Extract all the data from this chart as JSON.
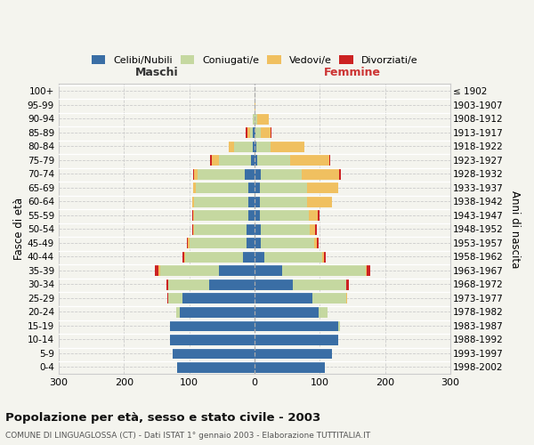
{
  "age_groups": [
    "0-4",
    "5-9",
    "10-14",
    "15-19",
    "20-24",
    "25-29",
    "30-34",
    "35-39",
    "40-44",
    "45-49",
    "50-54",
    "55-59",
    "60-64",
    "65-69",
    "70-74",
    "75-79",
    "80-84",
    "85-89",
    "90-94",
    "95-99",
    "100+"
  ],
  "birth_years": [
    "1998-2002",
    "1993-1997",
    "1988-1992",
    "1983-1987",
    "1978-1982",
    "1973-1977",
    "1968-1972",
    "1963-1967",
    "1958-1962",
    "1953-1957",
    "1948-1952",
    "1943-1947",
    "1938-1942",
    "1933-1937",
    "1928-1932",
    "1923-1927",
    "1918-1922",
    "1913-1917",
    "1908-1912",
    "1903-1907",
    "≤ 1902"
  ],
  "male_celibi": [
    118,
    125,
    130,
    130,
    115,
    110,
    70,
    55,
    18,
    12,
    12,
    10,
    10,
    10,
    15,
    5,
    3,
    2,
    0,
    0,
    0
  ],
  "male_coniugati": [
    0,
    0,
    0,
    0,
    5,
    22,
    62,
    90,
    88,
    88,
    80,
    82,
    82,
    80,
    72,
    50,
    28,
    5,
    2,
    0,
    0
  ],
  "male_vedovi": [
    0,
    0,
    0,
    0,
    0,
    0,
    0,
    2,
    2,
    2,
    2,
    2,
    4,
    4,
    5,
    10,
    8,
    4,
    0,
    0,
    0
  ],
  "male_divorziati": [
    0,
    0,
    0,
    0,
    0,
    2,
    3,
    5,
    3,
    2,
    2,
    2,
    0,
    0,
    2,
    3,
    0,
    2,
    0,
    0,
    0
  ],
  "female_nubili": [
    108,
    118,
    128,
    128,
    98,
    88,
    58,
    42,
    15,
    10,
    10,
    8,
    8,
    8,
    10,
    4,
    3,
    2,
    0,
    0,
    0
  ],
  "female_coniugate": [
    0,
    0,
    0,
    3,
    14,
    52,
    82,
    128,
    88,
    82,
    75,
    75,
    72,
    72,
    62,
    50,
    22,
    8,
    4,
    0,
    0
  ],
  "female_vedove": [
    0,
    0,
    0,
    0,
    0,
    2,
    0,
    2,
    4,
    4,
    8,
    14,
    38,
    48,
    58,
    60,
    52,
    14,
    18,
    2,
    0
  ],
  "female_divorziate": [
    0,
    0,
    0,
    0,
    0,
    0,
    5,
    5,
    2,
    2,
    2,
    2,
    0,
    0,
    2,
    2,
    0,
    2,
    0,
    0,
    0
  ],
  "colors_celibi": "#3a6ea5",
  "colors_coniugati": "#c5d8a0",
  "colors_vedovi": "#f0c060",
  "colors_divorziati": "#cc2222",
  "xlim": 300,
  "bg_color": "#f4f4ee",
  "grid_color": "#cccccc",
  "title": "Popolazione per età, sesso e stato civile - 2003",
  "subtitle": "COMUNE DI LINGUAGLOSSA (CT) - Dati ISTAT 1° gennaio 2003 - Elaborazione TUTTITALIA.IT",
  "ylabel_left": "Fasce di età",
  "ylabel_right": "Anni di nascita",
  "label_maschi": "Maschi",
  "label_femmine": "Femmine",
  "legend_celibi": "Celibi/Nubili",
  "legend_coniugati": "Coniugati/e",
  "legend_vedovi": "Vedovi/e",
  "legend_divorziati": "Divorziati/e"
}
